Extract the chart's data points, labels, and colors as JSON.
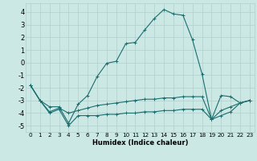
{
  "xlabel": "Humidex (Indice chaleur)",
  "background_color": "#cce8e5",
  "grid_color": "#b0cfcc",
  "line_color": "#1a6e6e",
  "xlim": [
    -0.5,
    23.5
  ],
  "ylim": [
    -5.5,
    4.7
  ],
  "yticks": [
    -5,
    -4,
    -3,
    -2,
    -1,
    0,
    1,
    2,
    3,
    4
  ],
  "xticks": [
    0,
    1,
    2,
    3,
    4,
    5,
    6,
    7,
    8,
    9,
    10,
    11,
    12,
    13,
    14,
    15,
    16,
    17,
    18,
    19,
    20,
    21,
    22,
    23
  ],
  "series": [
    {
      "x": [
        0,
        1,
        2,
        3,
        4,
        5,
        6,
        7,
        8,
        9,
        10,
        11,
        12,
        13,
        14,
        15,
        16,
        17,
        18,
        19,
        20,
        21,
        22,
        23
      ],
      "y": [
        -1.8,
        -3.0,
        -3.5,
        -3.5,
        -4.8,
        -3.3,
        -2.6,
        -1.1,
        -0.05,
        0.1,
        1.5,
        1.6,
        2.6,
        3.5,
        4.2,
        3.85,
        3.75,
        1.8,
        -0.9,
        -4.5,
        -3.8,
        -3.5,
        -3.2,
        -3.0
      ]
    },
    {
      "x": [
        0,
        1,
        2,
        3,
        4,
        5,
        6,
        7,
        8,
        9,
        10,
        11,
        12,
        13,
        14,
        15,
        16,
        17,
        18,
        19,
        20,
        21,
        22,
        23
      ],
      "y": [
        -1.8,
        -3.0,
        -3.9,
        -3.6,
        -4.0,
        -3.8,
        -3.6,
        -3.4,
        -3.3,
        -3.2,
        -3.1,
        -3.0,
        -2.9,
        -2.9,
        -2.8,
        -2.8,
        -2.7,
        -2.7,
        -2.7,
        -4.5,
        -2.6,
        -2.7,
        -3.2,
        -3.0
      ]
    },
    {
      "x": [
        0,
        1,
        2,
        3,
        4,
        5,
        6,
        7,
        8,
        9,
        10,
        11,
        12,
        13,
        14,
        15,
        16,
        17,
        18,
        19,
        20,
        21,
        22,
        23
      ],
      "y": [
        -1.8,
        -3.0,
        -4.0,
        -3.7,
        -5.0,
        -4.2,
        -4.2,
        -4.2,
        -4.1,
        -4.1,
        -4.0,
        -4.0,
        -3.9,
        -3.9,
        -3.8,
        -3.8,
        -3.7,
        -3.7,
        -3.7,
        -4.5,
        -4.2,
        -3.9,
        -3.2,
        -3.0
      ]
    }
  ]
}
